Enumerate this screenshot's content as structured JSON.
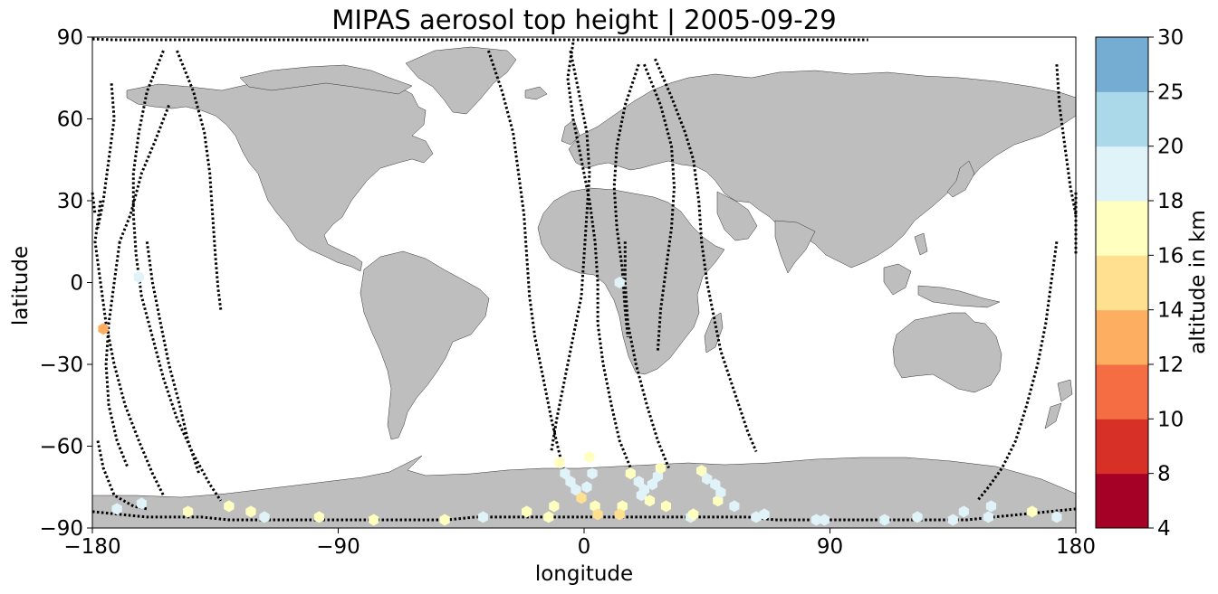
{
  "chart_data": {
    "type": "scatter",
    "title": "MIPAS aerosol top height | 2005-09-29",
    "xlabel": "longitude",
    "ylabel": "latitude",
    "xlim": [
      -180,
      180
    ],
    "ylim": [
      -90,
      90
    ],
    "xticks": [
      -180,
      -90,
      0,
      90,
      180
    ],
    "yticks": [
      -90,
      -60,
      -30,
      0,
      30,
      60,
      90
    ],
    "xtick_labels": [
      "−180",
      "−90",
      "0",
      "90",
      "180"
    ],
    "ytick_labels": [
      "−90",
      "−60",
      "−30",
      "0",
      "30",
      "60",
      "90"
    ],
    "grid": false,
    "background_land_color": "#bebebe",
    "colorbar": {
      "label": "altitude in km",
      "bounds": [
        4,
        8,
        10,
        12,
        14,
        16,
        18,
        20,
        25,
        30
      ],
      "tick_labels": [
        "4",
        "8",
        "10",
        "12",
        "14",
        "16",
        "18",
        "20",
        "25",
        "30"
      ],
      "colors": [
        "#a50026",
        "#d73027",
        "#f46d43",
        "#fdae61",
        "#fee090",
        "#ffffbf",
        "#e0f3f8",
        "#abd9e9",
        "#74add1",
        "#4575b4",
        "#313695"
      ]
    },
    "orbit_tracks": [
      [
        [
          -177,
          30
        ],
        [
          -179,
          15
        ],
        [
          -177,
          0
        ],
        [
          -175,
          -15
        ],
        [
          -172,
          -30
        ],
        [
          -168,
          -45
        ],
        [
          -163,
          -58
        ],
        [
          -158,
          -70
        ],
        [
          -154,
          -78
        ]
      ],
      [
        [
          -154,
          85
        ],
        [
          -160,
          70
        ],
        [
          -163,
          55
        ],
        [
          -165,
          40
        ],
        [
          -165,
          25
        ],
        [
          -164,
          10
        ],
        [
          -162,
          -5
        ],
        [
          -158,
          -20
        ],
        [
          -154,
          -35
        ],
        [
          -149,
          -50
        ],
        [
          -143,
          -63
        ],
        [
          -137,
          -74
        ],
        [
          -133,
          -80
        ]
      ],
      [
        [
          -170,
          15
        ],
        [
          -172,
          0
        ],
        [
          -174,
          -15
        ],
        [
          -175,
          -30
        ],
        [
          -174,
          -45
        ],
        [
          -171,
          -58
        ],
        [
          -167,
          -68
        ]
      ],
      [
        [
          -149,
          85
        ],
        [
          -143,
          70
        ],
        [
          -139,
          55
        ],
        [
          -137,
          40
        ],
        [
          -136,
          25
        ],
        [
          -135,
          10
        ],
        [
          -134,
          -2
        ],
        [
          -133,
          -10
        ]
      ],
      [
        [
          -160,
          15
        ],
        [
          -158,
          0
        ],
        [
          -155,
          -15
        ],
        [
          -152,
          -30
        ],
        [
          -148,
          -45
        ],
        [
          -145,
          -58
        ],
        [
          -141,
          -70
        ]
      ],
      [
        [
          -173,
          73
        ],
        [
          -172,
          60
        ],
        [
          -174,
          45
        ],
        [
          -176,
          30
        ],
        [
          -178,
          20
        ]
      ],
      [
        [
          -152,
          65
        ],
        [
          -157,
          52
        ],
        [
          -162,
          40
        ],
        [
          -166,
          25
        ],
        [
          -170,
          15
        ]
      ],
      [
        [
          -178,
          -58
        ],
        [
          -176,
          -68
        ],
        [
          -172,
          -78
        ],
        [
          -165,
          -82
        ],
        [
          -160,
          -83
        ]
      ],
      [
        [
          -35,
          85
        ],
        [
          -30,
          70
        ],
        [
          -26,
          55
        ],
        [
          -24,
          40
        ],
        [
          -22,
          25
        ],
        [
          -21,
          10
        ],
        [
          -20,
          -5
        ],
        [
          -18,
          -20
        ],
        [
          -15,
          -35
        ],
        [
          -12,
          -50
        ],
        [
          -9,
          -63
        ],
        [
          -6,
          -72
        ]
      ],
      [
        [
          -4,
          88
        ],
        [
          -6,
          75
        ],
        [
          -4,
          60
        ],
        [
          -1,
          45
        ],
        [
          2,
          30
        ],
        [
          4,
          15
        ],
        [
          5,
          0
        ],
        [
          5,
          -15
        ],
        [
          7,
          -30
        ],
        [
          10,
          -45
        ],
        [
          13,
          -58
        ],
        [
          17,
          -68
        ]
      ],
      [
        [
          -5,
          85
        ],
        [
          -2,
          70
        ],
        [
          1,
          55
        ],
        [
          2,
          40
        ],
        [
          1,
          25
        ],
        [
          0,
          10
        ],
        [
          -1,
          -5
        ],
        [
          -4,
          -20
        ],
        [
          -7,
          -35
        ],
        [
          -10,
          -50
        ],
        [
          -12,
          -62
        ]
      ],
      [
        [
          20,
          80
        ],
        [
          15,
          65
        ],
        [
          12,
          50
        ],
        [
          11,
          35
        ],
        [
          12,
          20
        ],
        [
          14,
          5
        ],
        [
          15,
          -10
        ],
        [
          16,
          -20
        ]
      ],
      [
        [
          22,
          80
        ],
        [
          28,
          65
        ],
        [
          32,
          50
        ],
        [
          33,
          35
        ],
        [
          32,
          20
        ],
        [
          30,
          5
        ],
        [
          28,
          -10
        ],
        [
          27,
          -25
        ]
      ],
      [
        [
          15,
          15
        ],
        [
          15,
          0
        ],
        [
          16,
          -15
        ],
        [
          19,
          -30
        ],
        [
          23,
          -45
        ],
        [
          27,
          -58
        ],
        [
          31,
          -68
        ]
      ],
      [
        [
          26,
          82
        ],
        [
          32,
          68
        ],
        [
          37,
          55
        ],
        [
          40,
          45
        ],
        [
          42,
          30
        ],
        [
          43,
          15
        ],
        [
          45,
          0
        ],
        [
          47,
          -10
        ],
        [
          50,
          -25
        ],
        [
          55,
          -40
        ],
        [
          60,
          -55
        ],
        [
          63,
          -62
        ]
      ],
      [
        [
          173,
          80
        ],
        [
          174,
          65
        ],
        [
          176,
          50
        ],
        [
          178,
          35
        ],
        [
          180,
          25
        ]
      ],
      [
        [
          173,
          15
        ],
        [
          171,
          0
        ],
        [
          169,
          -15
        ],
        [
          166,
          -30
        ],
        [
          162,
          -45
        ],
        [
          158,
          -58
        ],
        [
          153,
          -68
        ],
        [
          148,
          -75
        ],
        [
          144,
          -80
        ]
      ],
      [
        [
          180,
          33
        ],
        [
          180,
          10
        ]
      ],
      [
        [
          -180,
          33
        ],
        [
          -179,
          25
        ]
      ],
      [
        [
          -180,
          92
        ],
        [
          -172,
          89
        ],
        [
          -160,
          89
        ],
        [
          -150,
          89
        ],
        [
          -140,
          89
        ],
        [
          -130,
          89
        ],
        [
          -120,
          89
        ],
        [
          -110,
          89
        ],
        [
          -100,
          89
        ],
        [
          -90,
          89
        ],
        [
          -80,
          89
        ],
        [
          -70,
          89
        ],
        [
          -60,
          89
        ],
        [
          -50,
          89
        ],
        [
          -40,
          89
        ],
        [
          -30,
          89
        ],
        [
          -20,
          89
        ],
        [
          -10,
          89
        ],
        [
          0,
          89
        ],
        [
          10,
          89
        ],
        [
          20,
          89
        ],
        [
          30,
          89
        ],
        [
          40,
          89
        ],
        [
          50,
          89
        ],
        [
          60,
          89
        ],
        [
          70,
          89
        ],
        [
          80,
          89
        ],
        [
          90,
          89
        ],
        [
          100,
          89
        ],
        [
          104,
          89
        ]
      ],
      [
        [
          -180,
          -84
        ],
        [
          -170,
          -85
        ],
        [
          -160,
          -86
        ],
        [
          -150,
          -86
        ],
        [
          -140,
          -86
        ],
        [
          -130,
          -87
        ],
        [
          -120,
          -87
        ],
        [
          -110,
          -87
        ],
        [
          -100,
          -87
        ],
        [
          -90,
          -87
        ],
        [
          -80,
          -87
        ],
        [
          -70,
          -87
        ],
        [
          -60,
          -87
        ],
        [
          -50,
          -87
        ],
        [
          -40,
          -86
        ],
        [
          -30,
          -86
        ],
        [
          -20,
          -86
        ],
        [
          -10,
          -86
        ],
        [
          0,
          -86
        ],
        [
          10,
          -86
        ],
        [
          20,
          -86
        ],
        [
          30,
          -86
        ],
        [
          40,
          -86
        ],
        [
          50,
          -86
        ],
        [
          60,
          -86
        ],
        [
          70,
          -87
        ],
        [
          80,
          -87
        ],
        [
          90,
          -87
        ],
        [
          100,
          -87
        ],
        [
          110,
          -87
        ],
        [
          120,
          -87
        ],
        [
          130,
          -87
        ],
        [
          140,
          -87
        ],
        [
          150,
          -86
        ],
        [
          160,
          -85
        ],
        [
          170,
          -84
        ],
        [
          180,
          -83
        ]
      ]
    ],
    "points": [
      {
        "lon": -171,
        "lat": -83,
        "alt": 17
      },
      {
        "lon": -162,
        "lat": -81,
        "alt": 17
      },
      {
        "lon": -163,
        "lat": 2,
        "alt": 17
      },
      {
        "lon": -176,
        "lat": -17,
        "alt": 11
      },
      {
        "lon": -145,
        "lat": -84,
        "alt": 15
      },
      {
        "lon": -130,
        "lat": -82,
        "alt": 15
      },
      {
        "lon": -122,
        "lat": -84,
        "alt": 15
      },
      {
        "lon": -117,
        "lat": -86,
        "alt": 17
      },
      {
        "lon": -97,
        "lat": -86,
        "alt": 15
      },
      {
        "lon": -77,
        "lat": -87,
        "alt": 15
      },
      {
        "lon": -51,
        "lat": -87,
        "alt": 15
      },
      {
        "lon": -37,
        "lat": -86,
        "alt": 17
      },
      {
        "lon": -21,
        "lat": -84,
        "alt": 15
      },
      {
        "lon": -13,
        "lat": -86,
        "alt": 15
      },
      {
        "lon": -11,
        "lat": -82,
        "alt": 15
      },
      {
        "lon": -9,
        "lat": -66,
        "alt": 15
      },
      {
        "lon": -7,
        "lat": -70,
        "alt": 17
      },
      {
        "lon": -5,
        "lat": -73,
        "alt": 17
      },
      {
        "lon": -3,
        "lat": -76,
        "alt": 17
      },
      {
        "lon": -1,
        "lat": -79,
        "alt": 13
      },
      {
        "lon": 1,
        "lat": -75,
        "alt": 17
      },
      {
        "lon": 3,
        "lat": -70,
        "alt": 17
      },
      {
        "lon": 2,
        "lat": -64,
        "alt": 15
      },
      {
        "lon": 4,
        "lat": -82,
        "alt": 15
      },
      {
        "lon": 5,
        "lat": -85,
        "alt": 13
      },
      {
        "lon": 13,
        "lat": 0,
        "alt": 17
      },
      {
        "lon": 14,
        "lat": -82,
        "alt": 15
      },
      {
        "lon": 13,
        "lat": -85,
        "alt": 13
      },
      {
        "lon": 17,
        "lat": -70,
        "alt": 15
      },
      {
        "lon": 20,
        "lat": -73,
        "alt": 17
      },
      {
        "lon": 22,
        "lat": -76,
        "alt": 17
      },
      {
        "lon": 21,
        "lat": -78,
        "alt": 17
      },
      {
        "lon": 24,
        "lat": -80,
        "alt": 15
      },
      {
        "lon": 25,
        "lat": -74,
        "alt": 17
      },
      {
        "lon": 27,
        "lat": -71,
        "alt": 17
      },
      {
        "lon": 28,
        "lat": -68,
        "alt": 15
      },
      {
        "lon": 30,
        "lat": -82,
        "alt": 15
      },
      {
        "lon": 39,
        "lat": -86,
        "alt": 17
      },
      {
        "lon": 40,
        "lat": -85,
        "alt": 15
      },
      {
        "lon": 43,
        "lat": -69,
        "alt": 15
      },
      {
        "lon": 45,
        "lat": -72,
        "alt": 17
      },
      {
        "lon": 48,
        "lat": -74,
        "alt": 17
      },
      {
        "lon": 49,
        "lat": -80,
        "alt": 15
      },
      {
        "lon": 50,
        "lat": -77,
        "alt": 17
      },
      {
        "lon": 55,
        "lat": -82,
        "alt": 17
      },
      {
        "lon": 63,
        "lat": -86,
        "alt": 17
      },
      {
        "lon": 66,
        "lat": -85,
        "alt": 17
      },
      {
        "lon": 85,
        "lat": -87,
        "alt": 17
      },
      {
        "lon": 88,
        "lat": -87,
        "alt": 17
      },
      {
        "lon": 110,
        "lat": -87,
        "alt": 17
      },
      {
        "lon": 122,
        "lat": -86,
        "alt": 17
      },
      {
        "lon": 135,
        "lat": -87,
        "alt": 17
      },
      {
        "lon": 139,
        "lat": -84,
        "alt": 17
      },
      {
        "lon": 148,
        "lat": -86,
        "alt": 17
      },
      {
        "lon": 149,
        "lat": -82,
        "alt": 17
      },
      {
        "lon": 164,
        "lat": -84,
        "alt": 15
      },
      {
        "lon": 173,
        "lat": -86,
        "alt": 17
      }
    ]
  }
}
